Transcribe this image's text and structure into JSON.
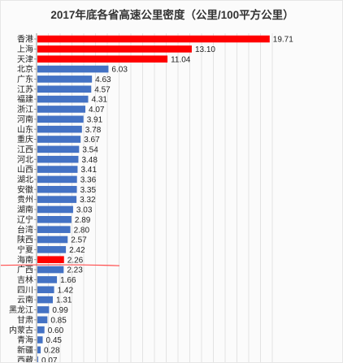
{
  "chart_data": {
    "type": "bar",
    "orientation": "horizontal",
    "title": "2017年底各省高速公里密度（公里/100平方公里）",
    "categories": [
      "香港",
      "上海",
      "天津",
      "北京",
      "广东",
      "江苏",
      "福建",
      "浙江",
      "河南",
      "山东",
      "重庆",
      "江西",
      "河北",
      "山西",
      "湖北",
      "安徽",
      "贵州",
      "湖南",
      "辽宁",
      "台湾",
      "陕西",
      "宁夏",
      "海南",
      "广西",
      "吉林",
      "四川",
      "云南",
      "黑龙江",
      "甘肃",
      "内蒙古",
      "青海",
      "新疆",
      "西藏"
    ],
    "values": [
      19.71,
      13.1,
      11.04,
      6.03,
      4.63,
      4.57,
      4.31,
      4.07,
      3.91,
      3.78,
      3.67,
      3.54,
      3.48,
      3.41,
      3.36,
      3.35,
      3.32,
      3.03,
      2.89,
      2.8,
      2.57,
      2.42,
      2.26,
      2.23,
      1.66,
      1.42,
      1.31,
      0.99,
      0.85,
      0.6,
      0.45,
      0.28,
      0.07
    ],
    "value_labels": [
      "19.71",
      "13.10",
      "11.04",
      "6.03",
      "4.63",
      "4.57",
      "4.31",
      "4.07",
      "3.91",
      "3.78",
      "3.67",
      "3.54",
      "3.48",
      "3.41",
      "3.36",
      "3.35",
      "3.32",
      "3.03",
      "2.89",
      "2.80",
      "2.57",
      "2.42",
      "2.26",
      "2.23",
      "1.66",
      "1.42",
      "1.31",
      "0.99",
      "0.85",
      "0.60",
      "0.45",
      "0.28",
      "0.07"
    ],
    "highlighted": [
      "香港",
      "上海",
      "天津",
      "海南"
    ],
    "xlim": [
      0,
      20
    ],
    "grid": true,
    "colors": {
      "default": "#4472c4",
      "highlight": "#ff0000",
      "underline": "#ff4d4d"
    }
  }
}
